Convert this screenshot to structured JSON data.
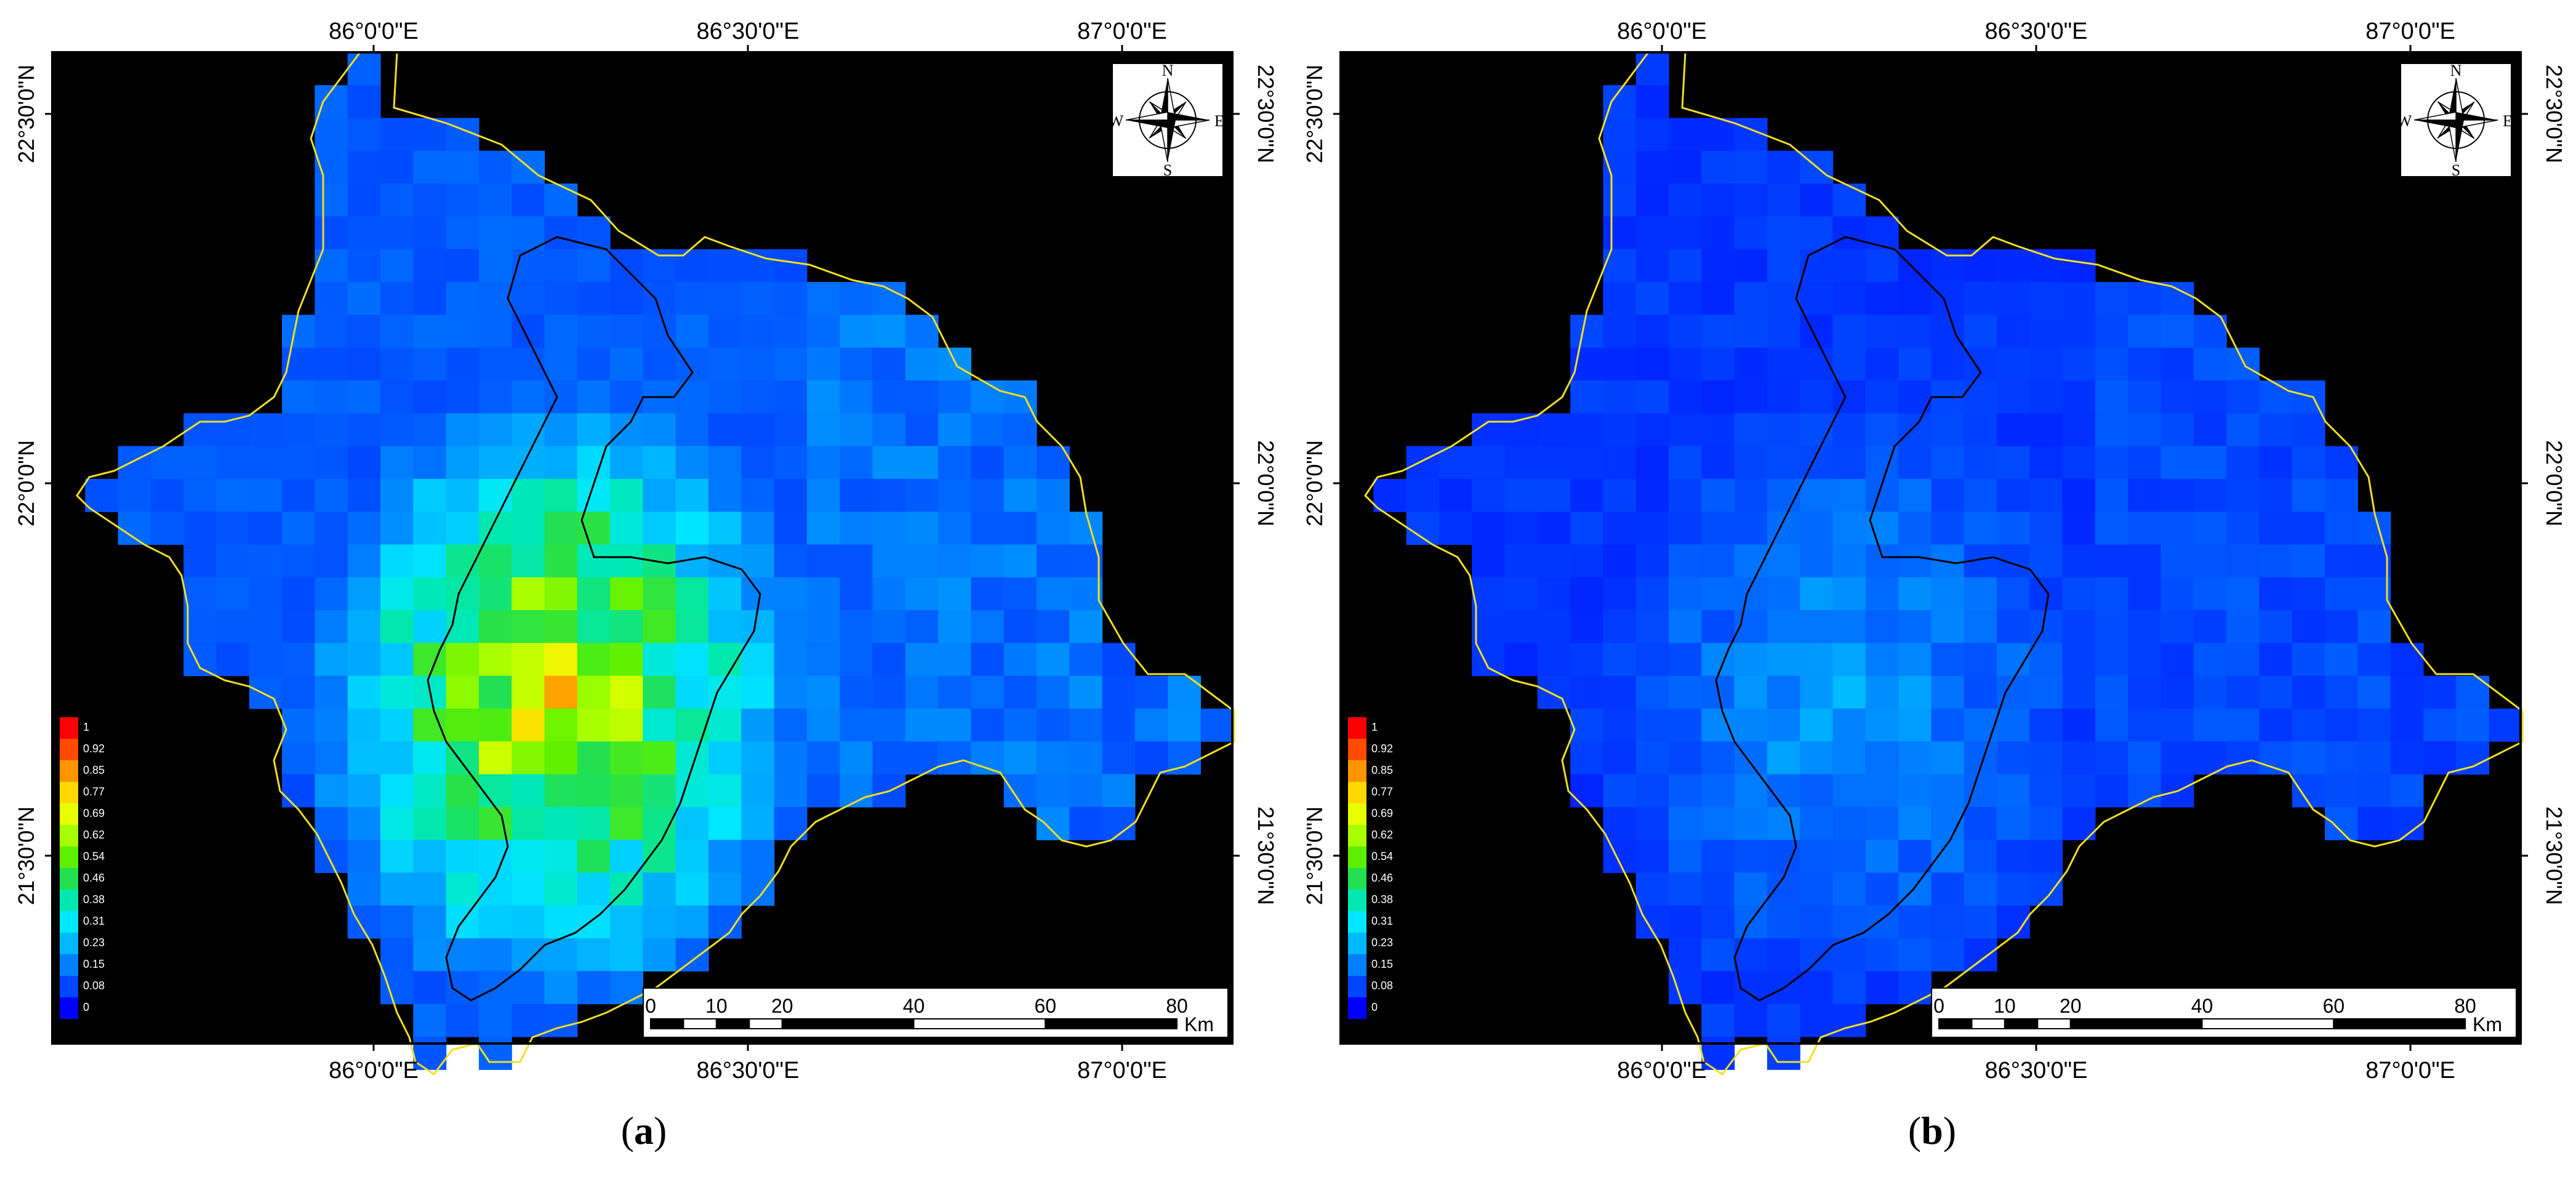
{
  "panels": [
    {
      "id": "a",
      "caption_open": "(",
      "caption_letter": "a",
      "caption_close": ")",
      "intensity": "high"
    },
    {
      "id": "b",
      "caption_open": "(",
      "caption_letter": "b",
      "caption_close": ")",
      "intensity": "low"
    }
  ],
  "axes": {
    "top_labels": [
      "86°0'0\"E",
      "86°30'0\"E",
      "87°0'0\"E"
    ],
    "bottom_labels": [
      "86°0'0\"E",
      "86°30'0\"E",
      "87°0'0\"E"
    ],
    "left_labels": [
      "22°30'0\"N",
      "22°0'0\"N",
      "21°30'0\"N"
    ],
    "right_labels": [
      "22°30'0\"N",
      "22°0'0\"N",
      "21°30'0\"N"
    ]
  },
  "legend": {
    "values": [
      "1",
      "0.92",
      "0.85",
      "0.77",
      "0.69",
      "0.62",
      "0.54",
      "0.46",
      "0.38",
      "0.31",
      "0.23",
      "0.15",
      "0.08",
      "0"
    ],
    "colors": [
      "#ff0000",
      "#ff4a00",
      "#ff9400",
      "#ffd800",
      "#e8ff00",
      "#a6ff00",
      "#5cf000",
      "#22e050",
      "#00e8b0",
      "#00e8ff",
      "#00b8ff",
      "#0080ff",
      "#0046ff",
      "#0000ff"
    ]
  },
  "scale_bar": {
    "ticks": [
      "0",
      "10",
      "20",
      "40",
      "60",
      "80"
    ],
    "unit": "Km"
  },
  "north_arrow": {
    "n": "N",
    "e": "E",
    "s": "S",
    "w": "W"
  },
  "colors": {
    "background": "#000000",
    "boundary": "#f0e020",
    "inner_outline": "#000000",
    "base_blue": "#0a2ee8"
  }
}
